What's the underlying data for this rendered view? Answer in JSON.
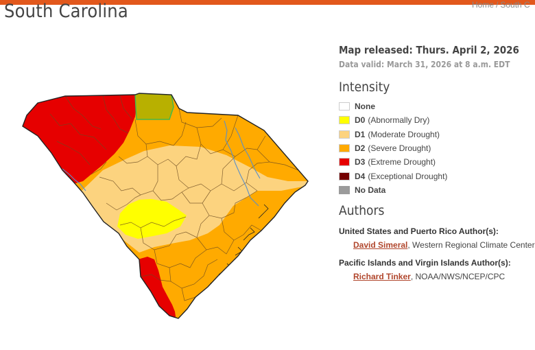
{
  "page": {
    "title": "South Carolina",
    "breadcrumb": [
      "Home",
      "South C"
    ]
  },
  "map": {
    "state": "South Carolina",
    "colors": {
      "D0": "#ffff00",
      "D1": "#fcd37f",
      "D2": "#ffaa00",
      "D3": "#e60000",
      "D4": "#730000",
      "none": "#ffffff",
      "no_data": "#9b9b9b",
      "county_lines": "#6b4b22",
      "rivers": "#5a8fc8",
      "outline": "#222222",
      "north_box": "#b8b000",
      "north_box_edge": "#45b84a"
    }
  },
  "panel": {
    "released": "Map released: Thurs. April 2, 2026",
    "valid": "Data valid: March 31, 2026 at 8 a.m. EDT",
    "intensity_heading": "Intensity",
    "legend": [
      {
        "code": "None",
        "desc": "",
        "color": "#ffffff"
      },
      {
        "code": "D0",
        "desc": "(Abnormally Dry)",
        "color": "#ffff00"
      },
      {
        "code": "D1",
        "desc": "(Moderate Drought)",
        "color": "#fcd37f"
      },
      {
        "code": "D2",
        "desc": "(Severe Drought)",
        "color": "#ffaa00"
      },
      {
        "code": "D3",
        "desc": "(Extreme Drought)",
        "color": "#e60000"
      },
      {
        "code": "D4",
        "desc": "(Exceptional Drought)",
        "color": "#730000"
      },
      {
        "code": "No Data",
        "desc": "",
        "color": "#9b9b9b"
      }
    ],
    "authors_heading": "Authors",
    "groups": [
      {
        "label": "United States and Puerto Rico Author(s):",
        "name": "David Simeral",
        "affil": ", Western Regional Climate Center"
      },
      {
        "label": "Pacific Islands and Virgin Islands Author(s):",
        "name": "Richard Tinker",
        "affil": ", NOAA/NWS/NCEP/CPC"
      }
    ]
  }
}
